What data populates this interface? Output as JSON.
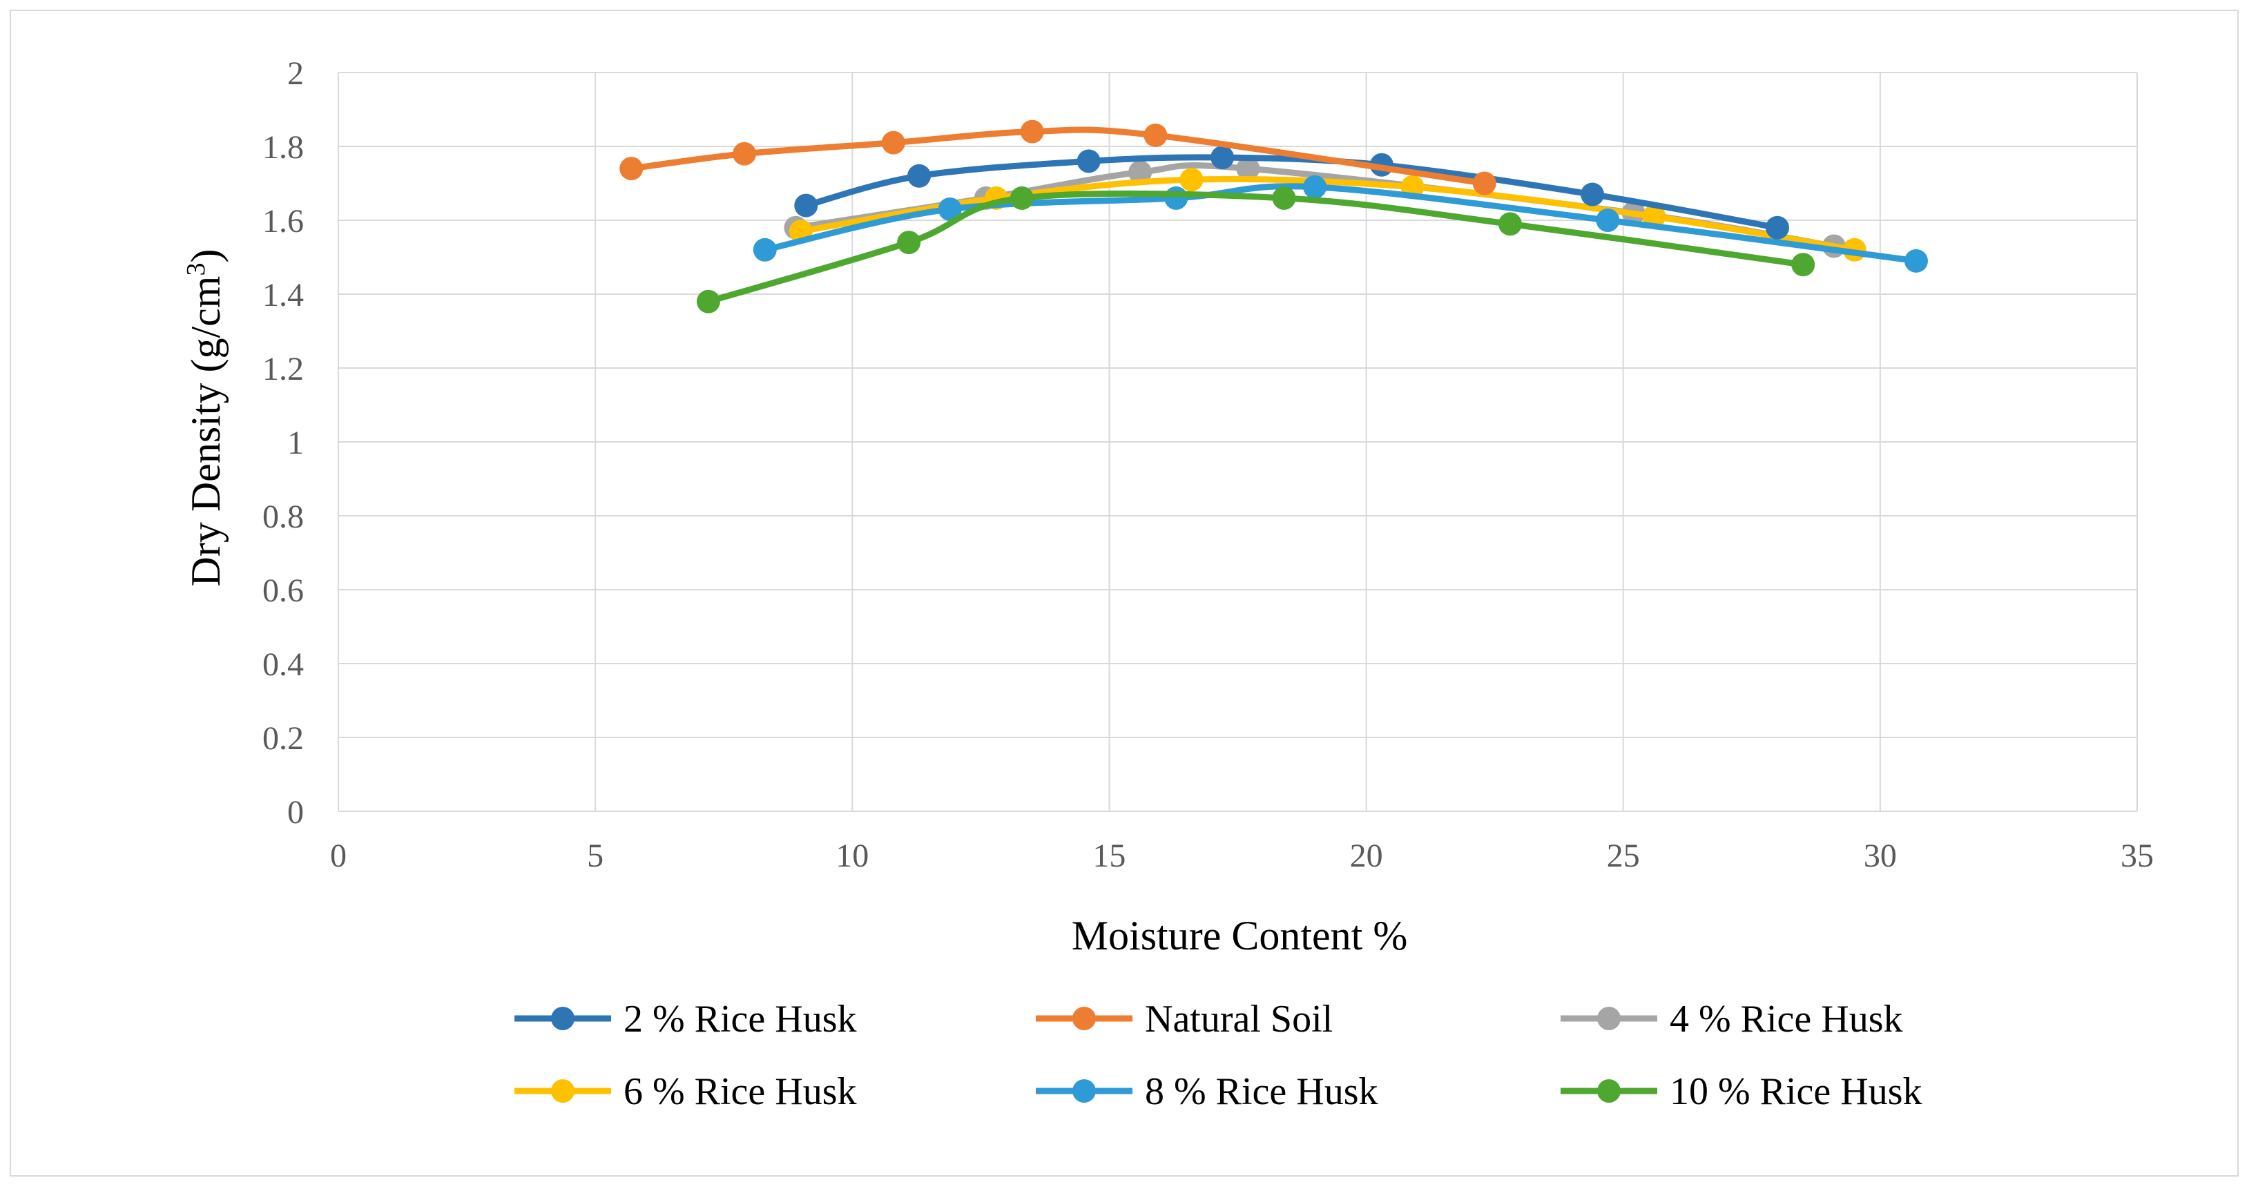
{
  "chart_data": {
    "type": "line",
    "title": "",
    "xlabel": "Moisture Content %",
    "ylabel": "Dry Density (g/cm",
    "ylabel_sup": "3",
    "ylabel_close": ")",
    "xlim": [
      0,
      35
    ],
    "ylim": [
      0,
      2
    ],
    "x_ticks": [
      0,
      5,
      10,
      15,
      20,
      25,
      30,
      35
    ],
    "y_ticks": [
      0,
      0.2,
      0.4,
      0.6,
      0.8,
      1,
      1.2,
      1.4,
      1.6,
      1.8,
      2
    ],
    "x_tick_labels": [
      "0",
      "5",
      "10",
      "15",
      "20",
      "25",
      "30",
      "35"
    ],
    "y_tick_labels": [
      "0",
      "0.2",
      "0.4",
      "0.6",
      "0.8",
      "1",
      "1.2",
      "1.4",
      "1.6",
      "1.8",
      "2"
    ],
    "grid": true,
    "legend_position": "bottom",
    "series": [
      {
        "name": "2 % Rice Husk",
        "color": "#2E75B6",
        "points": [
          [
            9.1,
            1.64
          ],
          [
            11.3,
            1.72
          ],
          [
            14.6,
            1.76
          ],
          [
            17.2,
            1.77
          ],
          [
            20.3,
            1.75
          ],
          [
            24.4,
            1.67
          ],
          [
            28.0,
            1.58
          ]
        ]
      },
      {
        "name": "Natural Soil",
        "color": "#ED7D31",
        "points": [
          [
            5.7,
            1.74
          ],
          [
            7.9,
            1.78
          ],
          [
            10.8,
            1.81
          ],
          [
            13.5,
            1.84
          ],
          [
            15.9,
            1.83
          ],
          [
            22.3,
            1.7
          ]
        ]
      },
      {
        "name": "4 % Rice Husk",
        "color": "#A5A5A5",
        "points": [
          [
            8.9,
            1.58
          ],
          [
            12.6,
            1.66
          ],
          [
            15.6,
            1.73
          ],
          [
            17.7,
            1.74
          ],
          [
            25.2,
            1.62
          ],
          [
            29.1,
            1.53
          ]
        ]
      },
      {
        "name": "6 % Rice Husk",
        "color": "#FFC000",
        "points": [
          [
            9.0,
            1.57
          ],
          [
            12.8,
            1.66
          ],
          [
            16.6,
            1.71
          ],
          [
            20.9,
            1.69
          ],
          [
            25.6,
            1.61
          ],
          [
            29.5,
            1.52
          ]
        ]
      },
      {
        "name": "8 % Rice Husk",
        "color": "#2E9BD6",
        "points": [
          [
            8.3,
            1.52
          ],
          [
            11.9,
            1.63
          ],
          [
            16.3,
            1.66
          ],
          [
            19.0,
            1.69
          ],
          [
            24.7,
            1.6
          ],
          [
            30.7,
            1.49
          ]
        ]
      },
      {
        "name": "10 % Rice Husk",
        "color": "#4EA72E",
        "points": [
          [
            7.2,
            1.38
          ],
          [
            11.1,
            1.54
          ],
          [
            13.3,
            1.66
          ],
          [
            18.4,
            1.66
          ],
          [
            22.8,
            1.59
          ],
          [
            28.5,
            1.48
          ]
        ]
      }
    ]
  }
}
